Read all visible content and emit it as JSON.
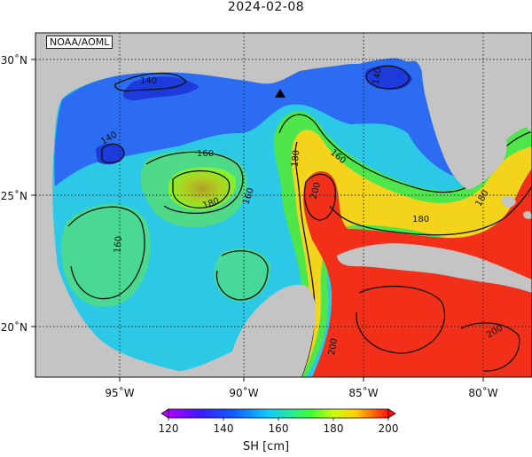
{
  "title": "2024-02-08",
  "credit": "NOAA/AOML",
  "colorbar": {
    "label": "SH [cm]",
    "ticks": [
      "120",
      "140",
      "160",
      "180",
      "200"
    ],
    "range": [
      120,
      200
    ]
  },
  "axes": {
    "lon_ticks": [
      "95˚W",
      "90˚W",
      "85˚W",
      "80˚W"
    ],
    "lat_ticks": [
      "30˚N",
      "25˚N",
      "20˚N"
    ]
  },
  "contour_labels": [
    "140",
    "140",
    "140",
    "160",
    "180",
    "160",
    "160",
    "160",
    "180",
    "180",
    "180",
    "200",
    "200",
    "200"
  ],
  "marker": "station-triangle",
  "colors": {
    "land": "#c4c4c4",
    "low": "#1a2bd6",
    "mid": "#2ad1e0",
    "green": "#3ee63e",
    "high": "#f42a10"
  }
}
